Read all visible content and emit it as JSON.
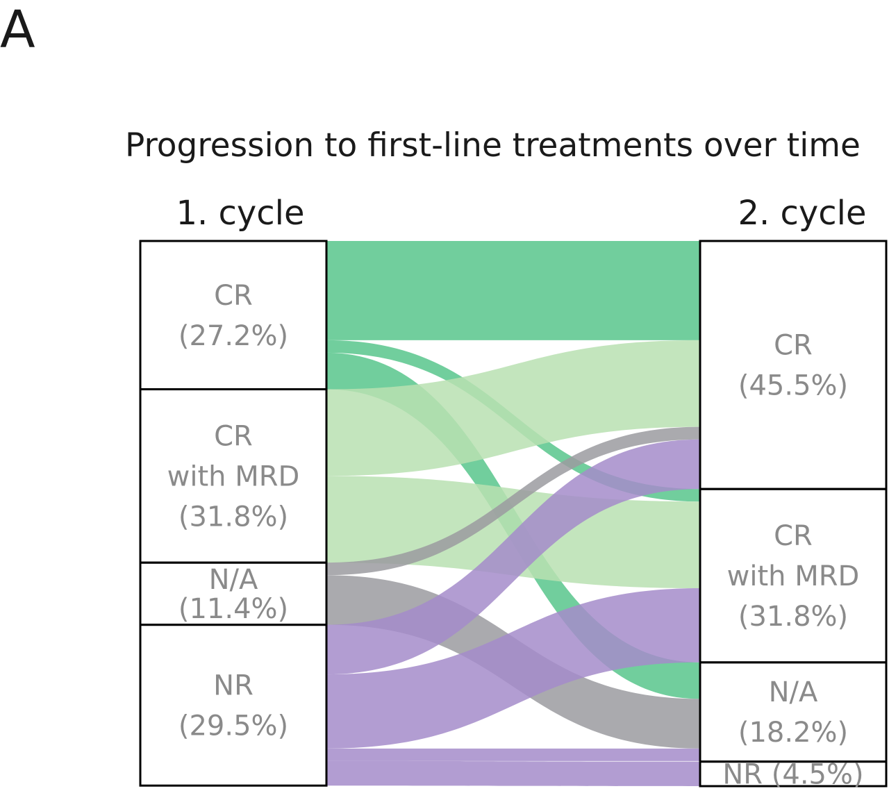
{
  "panel_letter": "A",
  "title": "Progression to first-line treatments over time",
  "colors": {
    "CR": "#58c58c",
    "CR with MRD": "#b9e0b2",
    "N/A": "#9b9ba0",
    "NR": "#a48cca"
  },
  "chart_data": {
    "type": "sankey",
    "title": "Progression to first-line treatments over time",
    "stages": [
      {
        "name": "1. cycle",
        "nodes": [
          {
            "id": "CR",
            "lines": [
              "CR",
              "(27.2%)"
            ],
            "percent": 27.2
          },
          {
            "id": "CR with MRD",
            "lines": [
              "CR",
              "with MRD",
              "(31.8%)"
            ],
            "percent": 31.8
          },
          {
            "id": "N/A",
            "lines": [
              "N/A",
              "(11.4%)"
            ],
            "percent": 11.4
          },
          {
            "id": "NR",
            "lines": [
              "NR",
              "(29.5%)"
            ],
            "percent": 29.5
          }
        ]
      },
      {
        "name": "2. cycle",
        "nodes": [
          {
            "id": "CR",
            "lines": [
              "CR",
              "(45.5%)"
            ],
            "percent": 45.5
          },
          {
            "id": "CR with MRD",
            "lines": [
              "CR",
              "with MRD",
              "(31.8%)"
            ],
            "percent": 31.8
          },
          {
            "id": "N/A",
            "lines": [
              "N/A",
              "(18.2%)"
            ],
            "percent": 18.2
          },
          {
            "id": "NR",
            "lines": [
              "NR (4.5%)"
            ],
            "percent": 4.5
          }
        ]
      }
    ],
    "flows": [
      {
        "from": "CR",
        "to": "CR",
        "value": 18.2
      },
      {
        "from": "CR",
        "to": "CR with MRD",
        "value": 2.3
      },
      {
        "from": "CR",
        "to": "N/A",
        "value": 6.7
      },
      {
        "from": "CR with MRD",
        "to": "CR",
        "value": 15.9
      },
      {
        "from": "CR with MRD",
        "to": "CR with MRD",
        "value": 15.9
      },
      {
        "from": "N/A",
        "to": "CR",
        "value": 2.3
      },
      {
        "from": "N/A",
        "to": "N/A",
        "value": 9.1
      },
      {
        "from": "NR",
        "to": "CR",
        "value": 9.1
      },
      {
        "from": "NR",
        "to": "CR with MRD",
        "value": 13.6
      },
      {
        "from": "NR",
        "to": "N/A",
        "value": 2.3
      },
      {
        "from": "NR",
        "to": "NR",
        "value": 4.5
      }
    ]
  }
}
